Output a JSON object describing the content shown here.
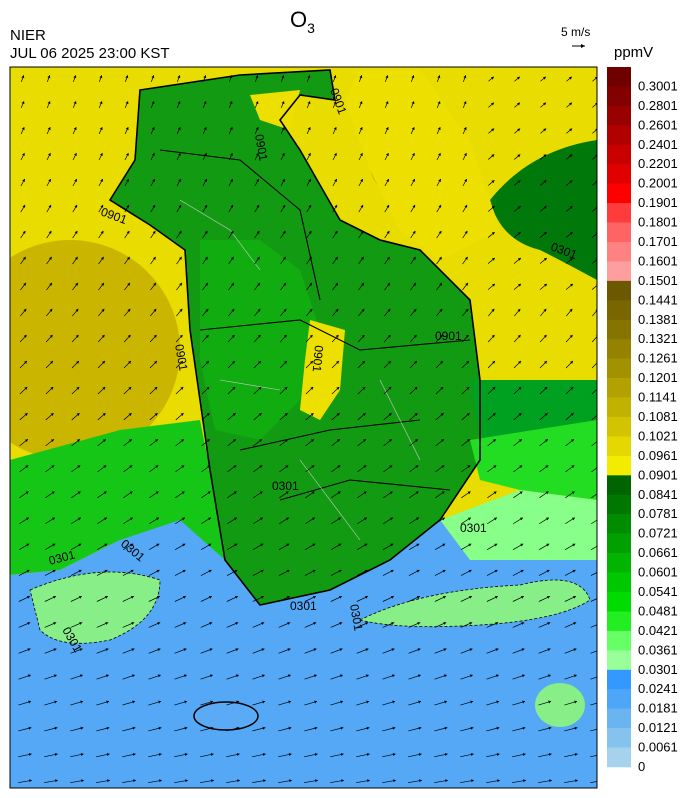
{
  "header": {
    "title": "O",
    "title_sub": "3",
    "agency": "NIER",
    "datetime": "JUL 06 2025 23:00 KST"
  },
  "wind_scale": {
    "label": "5 m/s"
  },
  "colorbar": {
    "unit": "ppmV",
    "labels": [
      "0.3001",
      "0.2801",
      "0.2601",
      "0.2401",
      "0.2201",
      "0.2001",
      "0.1901",
      "0.1801",
      "0.1701",
      "0.1601",
      "0.1501",
      "0.1441",
      "0.1381",
      "0.1321",
      "0.1261",
      "0.1201",
      "0.1141",
      "0.1081",
      "0.1021",
      "0.0961",
      "0.0901",
      "0.0841",
      "0.0781",
      "0.0721",
      "0.0661",
      "0.0601",
      "0.0541",
      "0.0481",
      "0.0421",
      "0.0361",
      "0.0301",
      "0.0241",
      "0.0181",
      "0.0121",
      "0.0061",
      "0"
    ],
    "colors": [
      "#6e0000",
      "#820000",
      "#990000",
      "#b00000",
      "#c80000",
      "#e00000",
      "#ff0000",
      "#ff3c3c",
      "#ff6464",
      "#ff8282",
      "#ff9e9e",
      "#6b5800",
      "#786600",
      "#867400",
      "#958300",
      "#a39200",
      "#b2a100",
      "#c2b200",
      "#d2c400",
      "#e4d800",
      "#f2ec00",
      "#006400",
      "#007800",
      "#008c00",
      "#00a000",
      "#00b400",
      "#00c800",
      "#00dc00",
      "#22ee22",
      "#66ff66",
      "#99ff99",
      "#3399ff",
      "#4ea6f8",
      "#6ab4f2",
      "#86c2ee",
      "#a6d2ee"
    ]
  },
  "contour_labels": [
    "0901",
    "0901",
    "0901",
    "0901",
    "0901",
    "0901",
    "0301",
    "0301",
    "0301",
    "0301",
    "0301",
    "0301",
    "0301",
    "0301"
  ]
}
